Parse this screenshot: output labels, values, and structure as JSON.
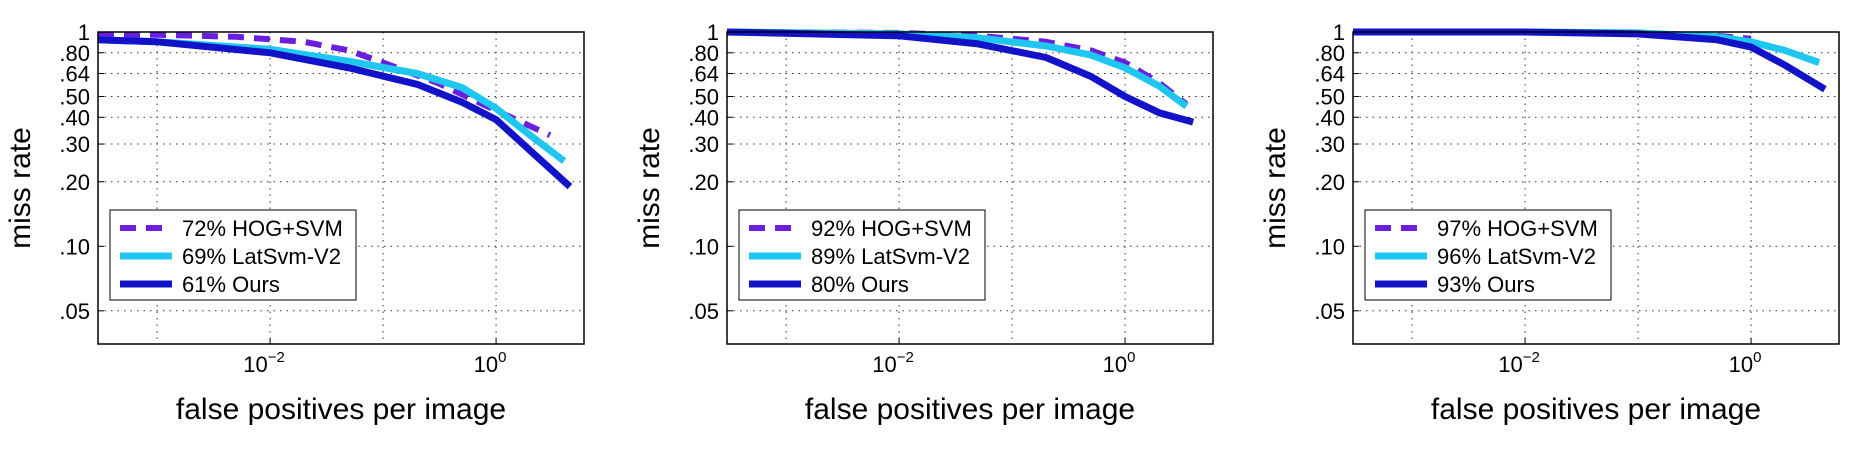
{
  "chart_data": [
    {
      "type": "line",
      "xlabel": "false positives per image",
      "ylabel": "miss rate",
      "x_scale": "log",
      "y_scale": "log",
      "xlim": [
        0.0003,
        6
      ],
      "ylim": [
        0.035,
        1
      ],
      "grid": true,
      "legend_position": "bottom-left",
      "x_ticks": [
        {
          "base": "10",
          "exp": "−2",
          "value": 0.01
        },
        {
          "base": "10",
          "exp": "0",
          "value": 1
        }
      ],
      "y_ticks": [
        {
          "label": "1",
          "value": 1
        },
        {
          "label": ".80",
          "value": 0.8
        },
        {
          "label": ".64",
          "value": 0.64
        },
        {
          "label": ".50",
          "value": 0.5
        },
        {
          "label": ".40",
          "value": 0.4
        },
        {
          "label": ".30",
          "value": 0.3
        },
        {
          "label": ".20",
          "value": 0.2
        },
        {
          "label": ".10",
          "value": 0.1
        },
        {
          "label": ".05",
          "value": 0.05
        }
      ],
      "series": [
        {
          "name": "72% HOG+SVM",
          "color": "#6a1fe0",
          "dashed": true,
          "x": [
            0.0003,
            0.001,
            0.005,
            0.02,
            0.05,
            0.1,
            0.3,
            1,
            3
          ],
          "y": [
            0.97,
            0.97,
            0.95,
            0.9,
            0.82,
            0.72,
            0.58,
            0.43,
            0.33
          ]
        },
        {
          "name": "69% LatSvm-V2",
          "color": "#1ec6f0",
          "dashed": false,
          "x": [
            0.0003,
            0.001,
            0.01,
            0.05,
            0.2,
            0.5,
            1,
            2,
            4
          ],
          "y": [
            0.92,
            0.9,
            0.83,
            0.73,
            0.64,
            0.55,
            0.44,
            0.33,
            0.25
          ]
        },
        {
          "name": "61% Ours",
          "color": "#1212c8",
          "dashed": false,
          "x": [
            0.0003,
            0.001,
            0.01,
            0.05,
            0.2,
            0.5,
            1,
            2,
            4.5
          ],
          "y": [
            0.92,
            0.9,
            0.8,
            0.68,
            0.57,
            0.47,
            0.39,
            0.28,
            0.19
          ]
        }
      ]
    },
    {
      "type": "line",
      "xlabel": "false positives per image",
      "ylabel": "miss rate",
      "x_scale": "log",
      "y_scale": "log",
      "xlim": [
        0.0003,
        6
      ],
      "ylim": [
        0.035,
        1
      ],
      "grid": true,
      "legend_position": "bottom-left",
      "x_ticks": [
        {
          "base": "10",
          "exp": "−2",
          "value": 0.01
        },
        {
          "base": "10",
          "exp": "0",
          "value": 1
        }
      ],
      "y_ticks": [
        {
          "label": "1",
          "value": 1
        },
        {
          "label": ".80",
          "value": 0.8
        },
        {
          "label": ".64",
          "value": 0.64
        },
        {
          "label": ".50",
          "value": 0.5
        },
        {
          "label": ".40",
          "value": 0.4
        },
        {
          "label": ".30",
          "value": 0.3
        },
        {
          "label": ".20",
          "value": 0.2
        },
        {
          "label": ".10",
          "value": 0.1
        },
        {
          "label": ".05",
          "value": 0.05
        }
      ],
      "series": [
        {
          "name": "92% HOG+SVM",
          "color": "#6a1fe0",
          "dashed": true,
          "x": [
            0.0003,
            0.01,
            0.05,
            0.2,
            0.5,
            1,
            2,
            3.5
          ],
          "y": [
            1.0,
            0.99,
            0.96,
            0.9,
            0.82,
            0.72,
            0.58,
            0.46
          ]
        },
        {
          "name": "89% LatSvm-V2",
          "color": "#1ec6f0",
          "dashed": false,
          "x": [
            0.0003,
            0.01,
            0.05,
            0.2,
            0.5,
            1,
            2,
            3.5
          ],
          "y": [
            1.0,
            0.98,
            0.94,
            0.86,
            0.78,
            0.68,
            0.56,
            0.45
          ]
        },
        {
          "name": "80% Ours",
          "color": "#1212c8",
          "dashed": false,
          "x": [
            0.0003,
            0.01,
            0.05,
            0.2,
            0.5,
            1,
            2,
            4
          ],
          "y": [
            1.0,
            0.96,
            0.88,
            0.76,
            0.62,
            0.5,
            0.42,
            0.38
          ]
        }
      ]
    },
    {
      "type": "line",
      "xlabel": "false positives per image",
      "ylabel": "miss rate",
      "x_scale": "log",
      "y_scale": "log",
      "xlim": [
        0.0003,
        6
      ],
      "ylim": [
        0.035,
        1
      ],
      "grid": true,
      "legend_position": "bottom-left",
      "x_ticks": [
        {
          "base": "10",
          "exp": "−2",
          "value": 0.01
        },
        {
          "base": "10",
          "exp": "0",
          "value": 1
        }
      ],
      "y_ticks": [
        {
          "label": "1",
          "value": 1
        },
        {
          "label": ".80",
          "value": 0.8
        },
        {
          "label": ".64",
          "value": 0.64
        },
        {
          "label": ".50",
          "value": 0.5
        },
        {
          "label": ".40",
          "value": 0.4
        },
        {
          "label": ".30",
          "value": 0.3
        },
        {
          "label": ".20",
          "value": 0.2
        },
        {
          "label": ".10",
          "value": 0.1
        },
        {
          "label": ".05",
          "value": 0.05
        }
      ],
      "series": [
        {
          "name": "97% HOG+SVM",
          "color": "#6a1fe0",
          "dashed": true,
          "x": [
            0.0003,
            0.01,
            0.1,
            0.5,
            1
          ],
          "y": [
            1.0,
            1.0,
            0.99,
            0.96,
            0.93
          ]
        },
        {
          "name": "96% LatSvm-V2",
          "color": "#1ec6f0",
          "dashed": false,
          "x": [
            0.0003,
            0.01,
            0.1,
            0.5,
            1,
            2,
            4
          ],
          "y": [
            1.0,
            1.0,
            0.99,
            0.95,
            0.9,
            0.82,
            0.72
          ]
        },
        {
          "name": "93% Ours",
          "color": "#1212c8",
          "dashed": false,
          "x": [
            0.0003,
            0.01,
            0.1,
            0.5,
            1,
            2,
            4.5
          ],
          "y": [
            1.0,
            1.0,
            0.98,
            0.92,
            0.85,
            0.7,
            0.54
          ]
        }
      ]
    }
  ]
}
